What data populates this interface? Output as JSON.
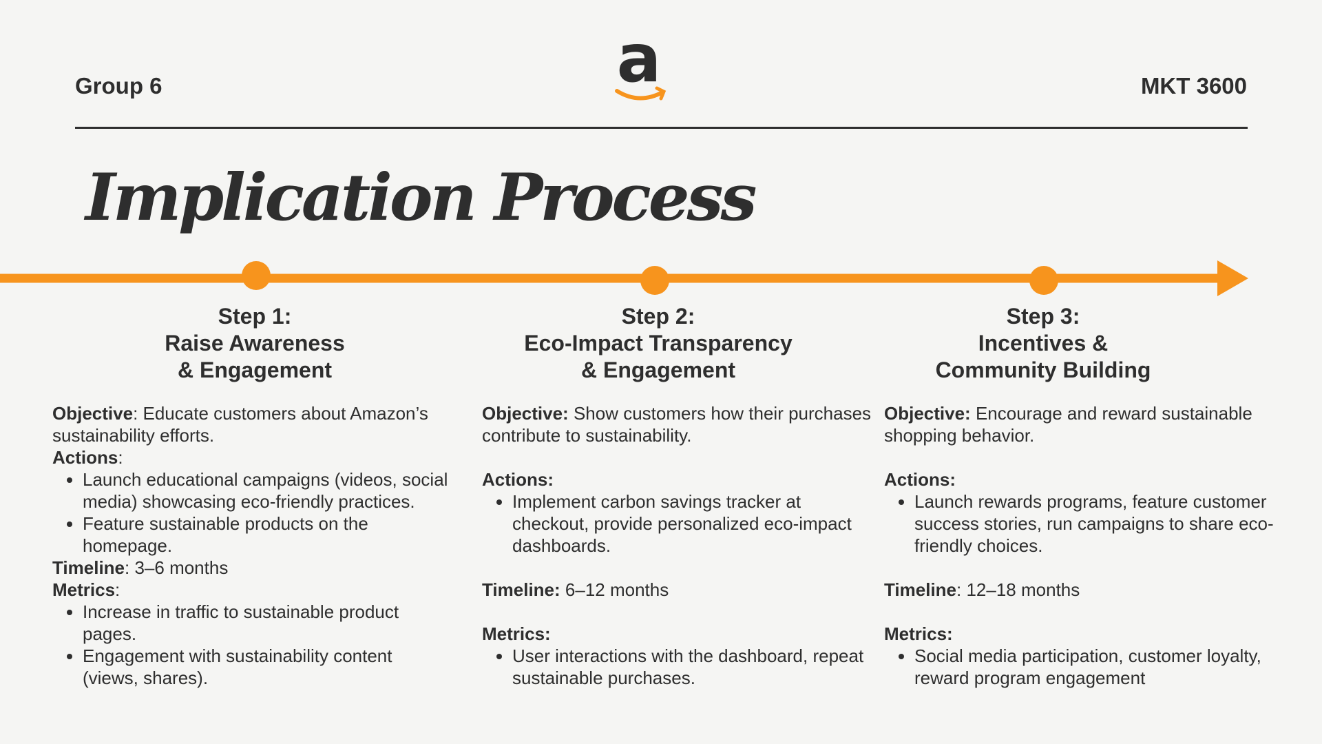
{
  "header": {
    "left": "Group 6",
    "logo": "a",
    "right": "MKT 3600"
  },
  "title": "Implication Process",
  "steps": [
    {
      "heading": [
        "Step 1:",
        "Raise Awareness",
        "& Engagement"
      ],
      "sections": [
        {
          "label": "Objective",
          "text": ": Educate customers about Amazon’s sustainability efforts."
        },
        {
          "label": "Actions",
          "text": ":",
          "bullets": [
            "Launch educational campaigns (videos, social media) showcasing eco-friendly practices.",
            "Feature sustainable products on the homepage."
          ]
        },
        {
          "label": "Timeline",
          "text": ": 3–6 months"
        },
        {
          "label": "Metrics",
          "text": ":",
          "bullets": [
            "Increase in traffic to sustainable product pages.",
            "Engagement with sustainability content (views, shares)."
          ]
        }
      ]
    },
    {
      "heading": [
        "Step 2:",
        "Eco-Impact Transparency",
        "& Engagement"
      ],
      "sections": [
        {
          "label": "Objective:",
          "text": "Show customers how their purchases contribute to sustainability."
        },
        {
          "label": "Actions:",
          "bullets": [
            "Implement carbon savings tracker at checkout, provide personalized eco-impact dashboards."
          ]
        },
        {
          "label": "Timeline:",
          "text": "6–12 months"
        },
        {
          "label": "Metrics:",
          "bullets": [
            "User interactions with the dashboard, repeat sustainable purchases."
          ]
        }
      ]
    },
    {
      "heading": [
        "Step 3:",
        "Incentives &",
        "Community Building"
      ],
      "sections": [
        {
          "label": "Objective:",
          "text": "Encourage and reward sustainable shopping behavior."
        },
        {
          "label": "Actions:",
          "bullets": [
            "Launch rewards programs, feature customer success stories, run campaigns to share eco-friendly choices."
          ]
        },
        {
          "label": "Timeline",
          "text": ": 12–18 months"
        },
        {
          "label": "Metrics:",
          "bullets": [
            "Social media participation, customer loyalty, reward program engagement"
          ]
        }
      ]
    }
  ]
}
